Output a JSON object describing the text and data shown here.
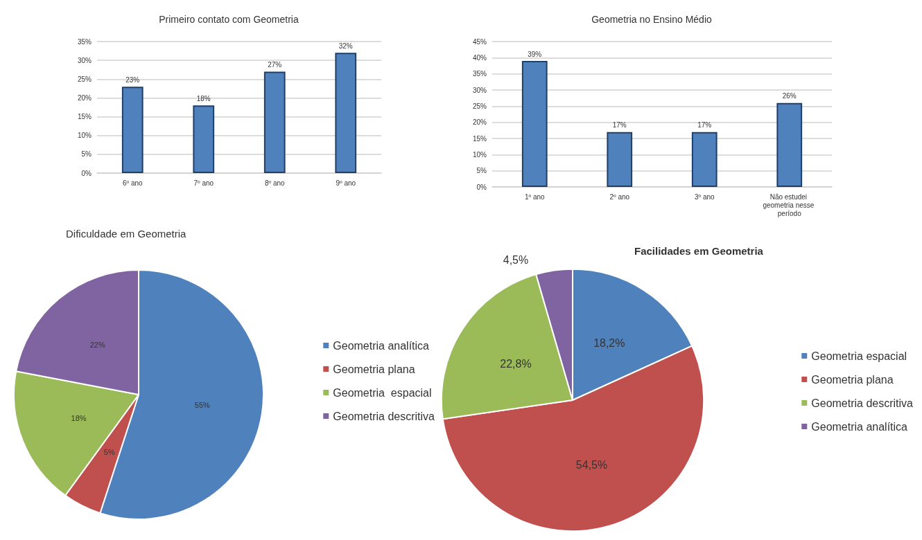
{
  "chart_data": [
    {
      "type": "bar",
      "title": "Primeiro contato com Geometria",
      "categories": [
        "6º ano",
        "7º ano",
        "8º ano",
        "9º ano"
      ],
      "values": [
        23,
        18,
        27,
        32
      ],
      "color": "#4f81bd",
      "value_labels": [
        "23%",
        "18%",
        "27%",
        "32%"
      ],
      "ylim": [
        0,
        35
      ],
      "yticks": [
        {
          "value": 0,
          "label": "0%"
        },
        {
          "value": 5,
          "label": "5%"
        },
        {
          "value": 10,
          "label": "10%"
        },
        {
          "value": 15,
          "label": "15%"
        },
        {
          "value": 20,
          "label": "20%"
        },
        {
          "value": 25,
          "label": "25%"
        },
        {
          "value": 30,
          "label": "30%"
        },
        {
          "value": 35,
          "label": "35%"
        }
      ],
      "grid": "y",
      "legend": false
    },
    {
      "type": "bar",
      "title": "Geometria no Ensino Médio",
      "categories": [
        "1º ano",
        "2º ano",
        "3º ano",
        "Não estudei geometria nesse período"
      ],
      "values": [
        39,
        17,
        17,
        26
      ],
      "color": "#4f81bd",
      "value_labels": [
        "39%",
        "17%",
        "17%",
        "26%"
      ],
      "ylim": [
        0,
        45
      ],
      "yticks": [
        {
          "value": 0,
          "label": "0%"
        },
        {
          "value": 5,
          "label": "5%"
        },
        {
          "value": 10,
          "label": "10%"
        },
        {
          "value": 15,
          "label": "15%"
        },
        {
          "value": 20,
          "label": "20%"
        },
        {
          "value": 25,
          "label": "25%"
        },
        {
          "value": 30,
          "label": "30%"
        },
        {
          "value": 35,
          "label": "35%"
        },
        {
          "value": 40,
          "label": "40%"
        },
        {
          "value": 45,
          "label": "45%"
        }
      ],
      "grid": "y",
      "legend": false
    },
    {
      "type": "pie",
      "title": "Dificuldade em Geometria",
      "categories": [
        "Geometria analítica",
        "Geometria plana",
        "Geometria  espacial",
        "Geometria descritiva"
      ],
      "values": [
        55,
        5,
        18,
        22
      ],
      "colors": [
        "#4f81bd",
        "#c0504d",
        "#9bbb59",
        "#8064a2"
      ],
      "value_labels": [
        "55%",
        "5%",
        "18%",
        "22%"
      ],
      "legend": "right"
    },
    {
      "type": "pie",
      "title": "Facilidades em Geometria",
      "categories": [
        "Geometria espacial",
        "Geometria plana",
        "Geometria descritiva",
        "Geometria analítica"
      ],
      "values": [
        18.2,
        54.5,
        22.8,
        4.5
      ],
      "colors": [
        "#4f81bd",
        "#c0504d",
        "#9bbb59",
        "#8064a2"
      ],
      "value_labels": [
        "18,2%",
        "54,5%",
        "22,8%",
        "4,5%"
      ],
      "legend": "right"
    }
  ]
}
